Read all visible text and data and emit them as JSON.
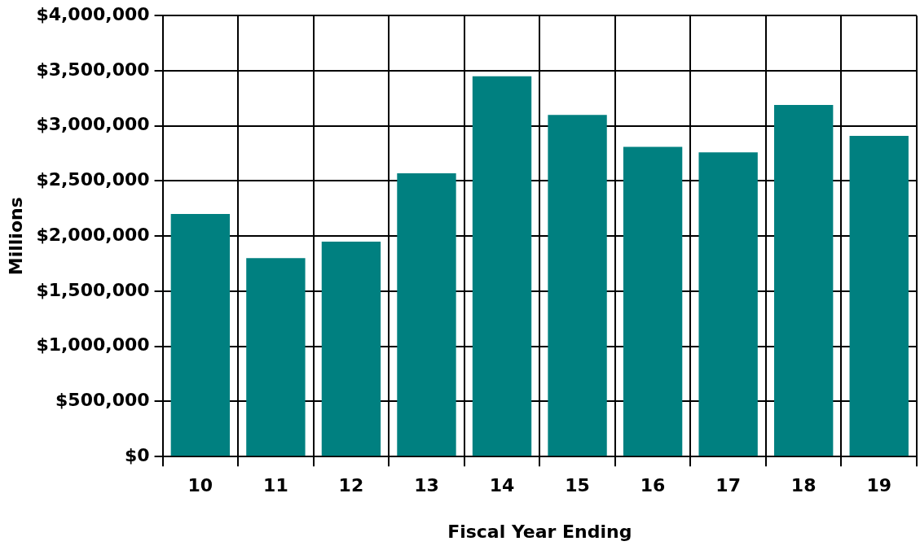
{
  "chart_data": {
    "type": "bar",
    "xlabel": "Fiscal Year Ending",
    "ylabel": "Millions",
    "categories": [
      "10",
      "11",
      "12",
      "13",
      "14",
      "15",
      "16",
      "17",
      "18",
      "19"
    ],
    "values": [
      2200000,
      1800000,
      1950000,
      2570000,
      3450000,
      3100000,
      2810000,
      2760000,
      3190000,
      2910000
    ],
    "color": "#008080",
    "ylim": [
      0,
      4000000
    ],
    "yticks": [
      {
        "value": 0,
        "label": "$0"
      },
      {
        "value": 500000,
        "label": "$500,000"
      },
      {
        "value": 1000000,
        "label": "$1,000,000"
      },
      {
        "value": 1500000,
        "label": "$1,500,000"
      },
      {
        "value": 2000000,
        "label": "$2,000,000"
      },
      {
        "value": 2500000,
        "label": "$2,500,000"
      },
      {
        "value": 3000000,
        "label": "$3,000,000"
      },
      {
        "value": 3500000,
        "label": "$3,500,000"
      },
      {
        "value": 4000000,
        "label": "$4,000,000"
      }
    ],
    "grid": true
  }
}
